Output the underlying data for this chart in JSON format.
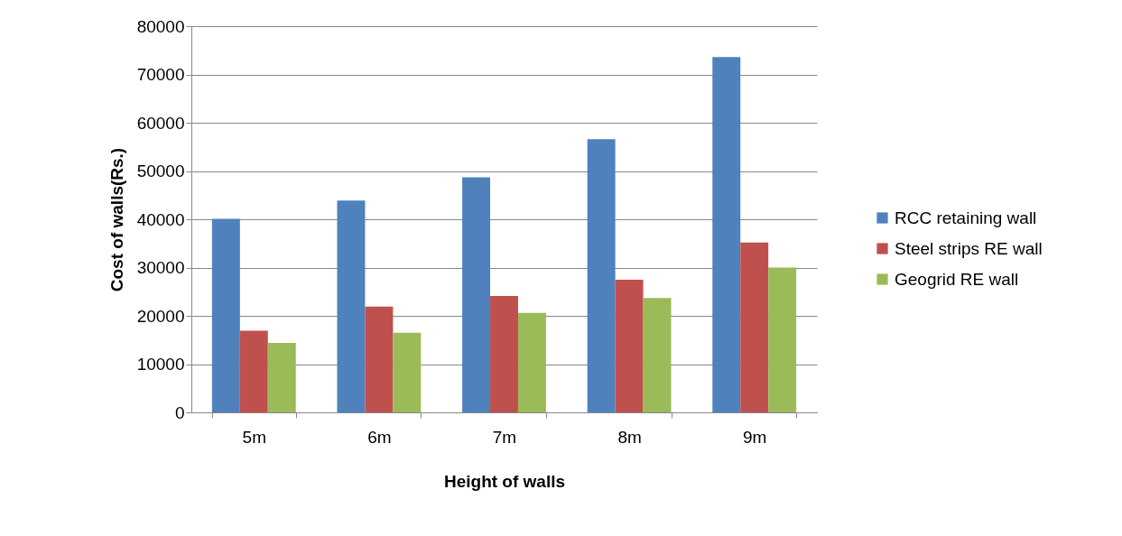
{
  "chart_data": {
    "type": "bar",
    "xlabel": "Height of walls",
    "ylabel": "Cost of walls(Rs.)",
    "categories": [
      "5m",
      "6m",
      "7m",
      "8m",
      "9m"
    ],
    "series": [
      {
        "name": "RCC retaining wall",
        "color": "#4f81bd",
        "values": [
          40100,
          43900,
          48700,
          56600,
          73600
        ]
      },
      {
        "name": "Steel strips RE wall",
        "color": "#c0504d",
        "values": [
          16900,
          21900,
          24100,
          27500,
          35200
        ]
      },
      {
        "name": "Geogrid RE wall",
        "color": "#9bbb59",
        "values": [
          14400,
          16500,
          20600,
          23700,
          30000
        ]
      }
    ],
    "ylim": [
      0,
      80000
    ],
    "yticks": [
      0,
      10000,
      20000,
      30000,
      40000,
      50000,
      60000,
      70000,
      80000
    ],
    "grid": "y",
    "legend": "right"
  }
}
